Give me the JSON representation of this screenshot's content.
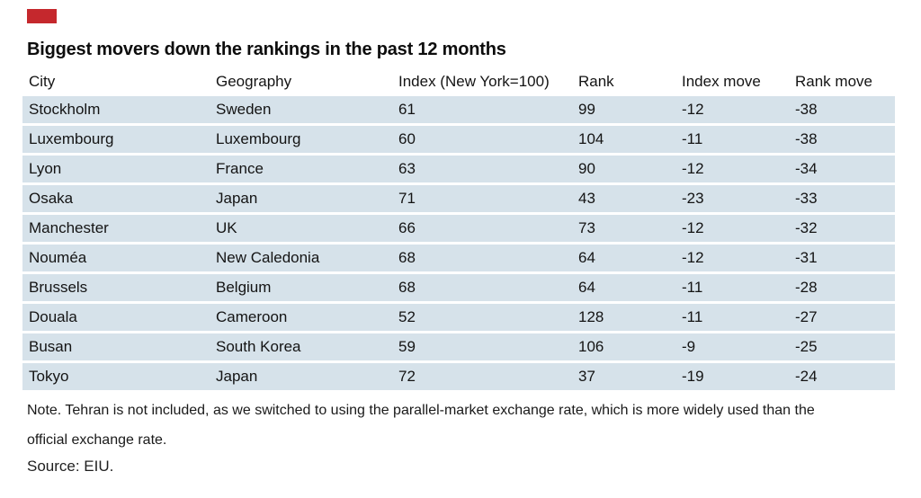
{
  "style": {
    "accent_red": "#c5282d",
    "row_bg": "#d6e2ea"
  },
  "chart_data": {
    "type": "table",
    "title": "Biggest movers down the rankings in the past 12 months",
    "columns": [
      "City",
      "Geography",
      "Index (New York=100)",
      "Rank",
      "Index move",
      "Rank move"
    ],
    "rows": [
      [
        "Stockholm",
        "Sweden",
        "61",
        "99",
        "-12",
        "-38"
      ],
      [
        "Luxembourg",
        "Luxembourg",
        "60",
        "104",
        "-11",
        "-38"
      ],
      [
        "Lyon",
        "France",
        "63",
        "90",
        "-12",
        "-34"
      ],
      [
        "Osaka",
        "Japan",
        "71",
        "43",
        "-23",
        "-33"
      ],
      [
        "Manchester",
        "UK",
        "66",
        "73",
        "-12",
        "-32"
      ],
      [
        "Nouméa",
        "New Caledonia",
        "68",
        "64",
        "-12",
        "-31"
      ],
      [
        "Brussels",
        "Belgium",
        "68",
        "64",
        "-11",
        "-28"
      ],
      [
        "Douala",
        "Cameroon",
        "52",
        "128",
        "-11",
        "-27"
      ],
      [
        "Busan",
        "South Korea",
        "59",
        "106",
        "-9",
        "-25"
      ],
      [
        "Tokyo",
        "Japan",
        "72",
        "37",
        "-19",
        "-24"
      ]
    ],
    "note": "Note. Tehran is not included, as we switched to using the parallel-market exchange rate, which is more widely used than the official exchange rate.",
    "source": "Source: EIU."
  }
}
